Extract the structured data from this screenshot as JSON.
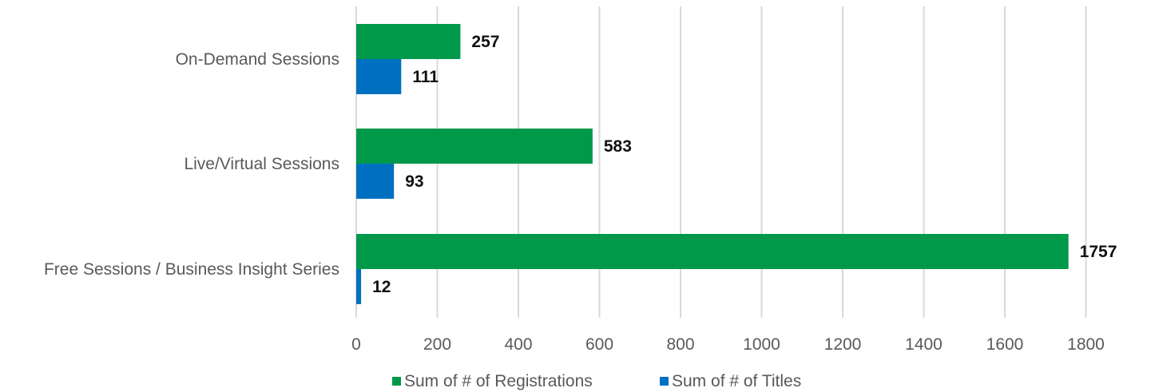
{
  "colors": {
    "registrations": "#00994a",
    "titles": "#0070c0"
  },
  "chart_data": {
    "type": "bar",
    "orientation": "horizontal",
    "categories": [
      "On-Demand Sessions",
      "Live/Virtual Sessions",
      "Free Sessions / Business Insight Series"
    ],
    "series": [
      {
        "name": "Sum of # of Registrations",
        "values": [
          257,
          583,
          1757
        ]
      },
      {
        "name": "Sum of # of Titles",
        "values": [
          111,
          93,
          12
        ]
      }
    ],
    "xticks": [
      0,
      200,
      400,
      600,
      800,
      1000,
      1200,
      1400,
      1600,
      1800
    ],
    "xlim": [
      0,
      1950
    ],
    "grid": true,
    "legend_position": "bottom",
    "title": "",
    "xlabel": "",
    "ylabel": ""
  }
}
